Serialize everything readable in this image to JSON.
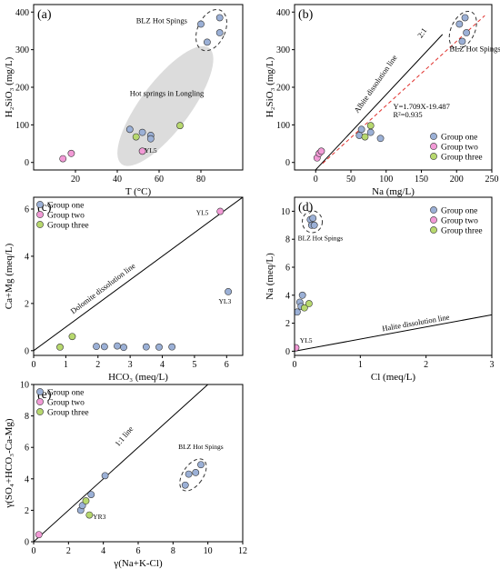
{
  "legend": [
    "Group one",
    "Group two",
    "Group three"
  ],
  "colors": {
    "one": "#9bb0d6",
    "two": "#f29ad6",
    "three": "#b7d86e",
    "stroke": "#333333",
    "shade": "#dcdcdc",
    "regline": "#e0302c"
  },
  "chart_data": [
    {
      "panel": "(a)",
      "type": "scatter",
      "xlabel": "T (°C)",
      "ylabel": "H₂SiO₃ (mg/L)",
      "xlim": [
        0,
        100
      ],
      "ylim": [
        -20,
        420
      ],
      "xticks": [
        20,
        40,
        60,
        80
      ],
      "yticks": [
        0,
        100,
        200,
        300,
        400
      ],
      "series": [
        {
          "name": "Group one",
          "points": [
            [
              46,
              88
            ],
            [
              52,
              80
            ],
            [
              56,
              72
            ],
            [
              56,
              63
            ],
            [
              80,
              368
            ],
            [
              83,
              320
            ],
            [
              89,
              385
            ],
            [
              89,
              345
            ]
          ]
        },
        {
          "name": "Group two",
          "points": [
            [
              14,
              10
            ],
            [
              18,
              24
            ],
            [
              52,
              30
            ]
          ]
        },
        {
          "name": "Group three",
          "points": [
            [
              49,
              68
            ],
            [
              70,
              98
            ]
          ]
        }
      ],
      "annotations": [
        "BLZ Hot Spings",
        "Hot springs in Longling",
        "YL5"
      ]
    },
    {
      "panel": "(b)",
      "type": "scatter",
      "xlabel": "Na (mg/L)",
      "ylabel": "H₂SiO₃ (mg/L)",
      "xlim": [
        -30,
        250
      ],
      "ylim": [
        -20,
        420
      ],
      "xticks": [
        0,
        50,
        100,
        150,
        200,
        250
      ],
      "yticks": [
        0,
        100,
        200,
        300,
        400
      ],
      "series": [
        {
          "name": "Group one",
          "points": [
            [
              62,
              72
            ],
            [
              65,
              88
            ],
            [
              78,
              80
            ],
            [
              92,
              64
            ],
            [
              204,
              368
            ],
            [
              208,
              322
            ],
            [
              212,
              385
            ],
            [
              214,
              345
            ]
          ]
        },
        {
          "name": "Group two",
          "points": [
            [
              2,
              12
            ],
            [
              5,
              24
            ],
            [
              8,
              30
            ]
          ]
        },
        {
          "name": "Group three",
          "points": [
            [
              70,
              68
            ],
            [
              78,
              98
            ]
          ]
        }
      ],
      "annotations": [
        "Albite dissolution line",
        "2:1",
        "Y=1.709X-19.487",
        "R²=0.935",
        "BLZ Hot Spings"
      ]
    },
    {
      "panel": "(c)",
      "type": "scatter",
      "xlabel": "HCO₃ (meq/L)",
      "ylabel": "Ca+Mg (meq/L)",
      "xlim": [
        0,
        6.5
      ],
      "ylim": [
        -0.2,
        6.5
      ],
      "xticks": [
        0,
        1,
        2,
        3,
        4,
        5,
        6
      ],
      "yticks": [
        0,
        2,
        4,
        6
      ],
      "series": [
        {
          "name": "Group one",
          "points": [
            [
              1.95,
              0.18
            ],
            [
              2.2,
              0.17
            ],
            [
              2.6,
              0.2
            ],
            [
              2.8,
              0.14
            ],
            [
              3.5,
              0.16
            ],
            [
              3.9,
              0.15
            ],
            [
              4.3,
              0.16
            ],
            [
              6.05,
              2.5
            ]
          ]
        },
        {
          "name": "Group two",
          "points": [
            [
              5.8,
              5.9
            ]
          ]
        },
        {
          "name": "Group three",
          "points": [
            [
              0.82,
              0.15
            ],
            [
              1.2,
              0.6
            ]
          ]
        }
      ],
      "annotations": [
        "Dolomite dissolution line",
        "YL5",
        "YL3"
      ]
    },
    {
      "panel": "(d)",
      "type": "scatter",
      "xlabel": "Cl (meq/L)",
      "ylabel": "Na (meq/L)",
      "xlim": [
        0,
        3
      ],
      "ylim": [
        -0.3,
        11
      ],
      "xticks": [
        0,
        1,
        2,
        3
      ],
      "yticks": [
        0,
        2,
        4,
        6,
        8,
        10
      ],
      "series": [
        {
          "name": "Group one",
          "points": [
            [
              0.04,
              2.8
            ],
            [
              0.08,
              3.5
            ],
            [
              0.1,
              3.2
            ],
            [
              0.12,
              4.0
            ],
            [
              0.24,
              9.4
            ],
            [
              0.26,
              9.0
            ],
            [
              0.28,
              9.5
            ],
            [
              0.3,
              9.0
            ]
          ]
        },
        {
          "name": "Group two",
          "points": [
            [
              0.02,
              0.25
            ]
          ]
        },
        {
          "name": "Group three",
          "points": [
            [
              0.15,
              3.1
            ],
            [
              0.22,
              3.4
            ]
          ]
        }
      ],
      "annotations": [
        "BLZ Hot Spings",
        "Halite dissolution line",
        "YL5"
      ]
    },
    {
      "panel": "(e)",
      "type": "scatter",
      "xlabel": "γ(Na+K-Cl)",
      "ylabel": "γ(SO₄+HCO₃-Ca-Mg)",
      "xlim": [
        0,
        12
      ],
      "ylim": [
        0,
        10
      ],
      "xticks": [
        0,
        2,
        4,
        6,
        8,
        10,
        12
      ],
      "yticks": [
        0,
        2,
        4,
        6,
        8,
        10
      ],
      "series": [
        {
          "name": "Group one",
          "points": [
            [
              2.7,
              2.0
            ],
            [
              2.8,
              2.3
            ],
            [
              3.3,
              3.0
            ],
            [
              4.1,
              4.2
            ],
            [
              8.7,
              3.6
            ],
            [
              8.9,
              4.3
            ],
            [
              9.3,
              4.4
            ],
            [
              9.6,
              4.9
            ]
          ]
        },
        {
          "name": "Group two",
          "points": [
            [
              0.3,
              0.45
            ]
          ]
        },
        {
          "name": "Group three",
          "points": [
            [
              3.0,
              2.6
            ],
            [
              3.2,
              1.7
            ]
          ]
        }
      ],
      "annotations": [
        "1:1 line",
        "BLZ Hot Spings",
        "YR3"
      ]
    }
  ]
}
